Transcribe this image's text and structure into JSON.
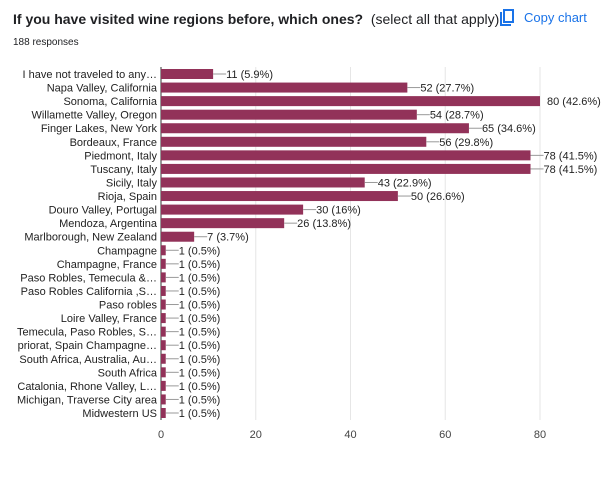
{
  "header": {
    "question": "If you have visited wine regions before, which ones?",
    "hint": "(select all that apply)",
    "responses": "188 responses",
    "copy_label": "Copy chart",
    "copy_icon": "copy-icon"
  },
  "chart_data": {
    "type": "bar",
    "orientation": "horizontal",
    "color": "#923259",
    "xlim": [
      0,
      80
    ],
    "xticks": [
      0,
      20,
      40,
      60,
      80
    ],
    "grid": true,
    "categories": [
      "I have not traveled to any…",
      "Napa Valley, California",
      "Sonoma, California",
      "Willamette Valley, Oregon",
      "Finger Lakes, New York",
      "Bordeaux, France",
      "Piedmont, Italy",
      "Tuscany, Italy",
      "Sicily, Italy",
      "Rioja, Spain",
      "Douro Valley, Portugal",
      "Mendoza, Argentina",
      "Marlborough, New Zealand",
      "Champagne",
      "Champagne, France",
      "Paso Robles, Temecula &…",
      "Paso Robles California ,S…",
      "Paso robles",
      "Loire Valley, France",
      "Temecula, Paso Robles, S…",
      "priorat, Spain Champagne…",
      "South Africa, Australia, Au…",
      "South Africa",
      "Catalonia, Rhone Valley, L…",
      "Michigan, Traverse City area",
      "Midwestern US"
    ],
    "values": [
      11,
      52,
      80,
      54,
      65,
      56,
      78,
      78,
      43,
      50,
      30,
      26,
      7,
      1,
      1,
      1,
      1,
      1,
      1,
      1,
      1,
      1,
      1,
      1,
      1,
      1
    ],
    "labels": [
      "11 (5.9%)",
      "52 (27.7%)",
      "80 (42.6%)",
      "54 (28.7%)",
      "65 (34.6%)",
      "56 (29.8%)",
      "78 (41.5%)",
      "78 (41.5%)",
      "43 (22.9%)",
      "50 (26.6%)",
      "30 (16%)",
      "26 (13.8%)",
      "7 (3.7%)",
      "1 (0.5%)",
      "1 (0.5%)",
      "1 (0.5%)",
      "1 (0.5%)",
      "1 (0.5%)",
      "1 (0.5%)",
      "1 (0.5%)",
      "1 (0.5%)",
      "1 (0.5%)",
      "1 (0.5%)",
      "1 (0.5%)",
      "1 (0.5%)",
      "1 (0.5%)"
    ]
  }
}
